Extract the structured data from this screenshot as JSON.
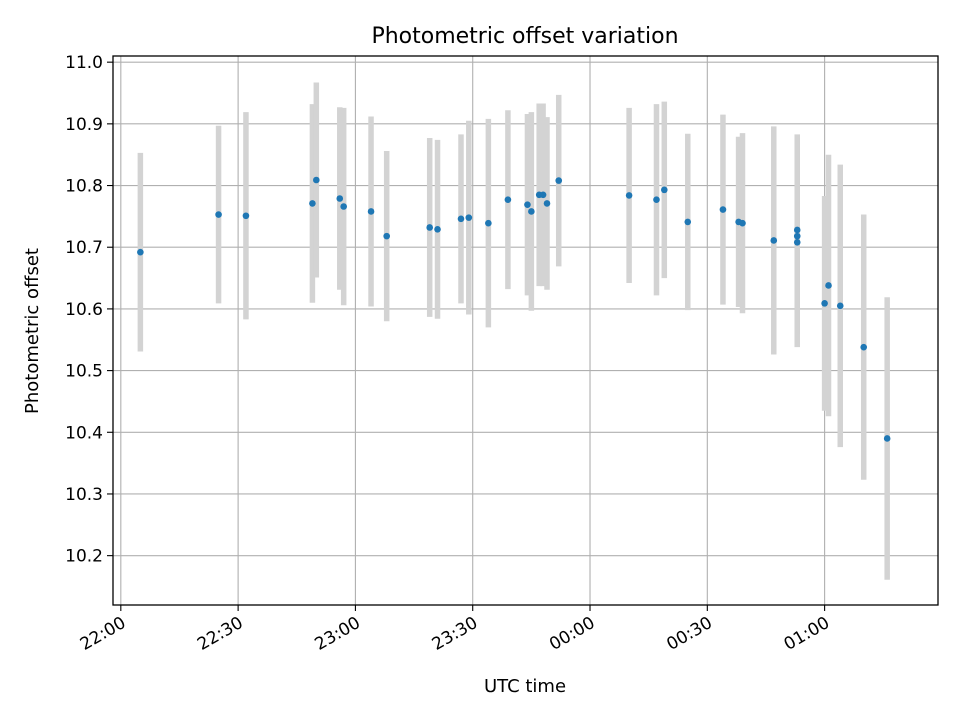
{
  "chart_data": {
    "type": "scatter",
    "title": "Photometric offset variation",
    "xlabel": "UTC time",
    "ylabel": "Photometric offset",
    "grid": true,
    "colors": {
      "points": "#1f77b4",
      "errorbars": "#d3d3d3",
      "grid": "#b0b0b0"
    },
    "xlim": [
      "21:58",
      "01:29"
    ],
    "ylim": [
      10.12,
      11.01
    ],
    "x_tick_labels": [
      "22:00",
      "22:30",
      "23:00",
      "23:30",
      "00:00",
      "00:30",
      "01:00"
    ],
    "x_tick_minutes": [
      0,
      30,
      60,
      90,
      120,
      150,
      180
    ],
    "y_ticks": [
      "10.2",
      "10.3",
      "10.4",
      "10.5",
      "10.6",
      "10.7",
      "10.8",
      "10.9",
      "11.0"
    ],
    "y_tick_values": [
      10.2,
      10.3,
      10.4,
      10.5,
      10.6,
      10.7,
      10.8,
      10.9,
      11.0
    ],
    "points": [
      {
        "x": "22:05",
        "y": 10.692,
        "err": 0.161
      },
      {
        "x": "22:25",
        "y": 10.753,
        "err": 0.144
      },
      {
        "x": "22:32",
        "y": 10.751,
        "err": 0.168
      },
      {
        "x": "22:49",
        "y": 10.771,
        "err": 0.161
      },
      {
        "x": "22:50",
        "y": 10.809,
        "err": 0.158
      },
      {
        "x": "22:56",
        "y": 10.779,
        "err": 0.148
      },
      {
        "x": "22:57",
        "y": 10.766,
        "err": 0.16
      },
      {
        "x": "23:04",
        "y": 10.758,
        "err": 0.154
      },
      {
        "x": "23:08",
        "y": 10.718,
        "err": 0.138
      },
      {
        "x": "23:19",
        "y": 10.732,
        "err": 0.145
      },
      {
        "x": "23:21",
        "y": 10.729,
        "err": 0.145
      },
      {
        "x": "23:27",
        "y": 10.746,
        "err": 0.137
      },
      {
        "x": "23:29",
        "y": 10.748,
        "err": 0.157
      },
      {
        "x": "23:34",
        "y": 10.739,
        "err": 0.169
      },
      {
        "x": "23:39",
        "y": 10.777,
        "err": 0.145
      },
      {
        "x": "23:44",
        "y": 10.769,
        "err": 0.147
      },
      {
        "x": "23:45",
        "y": 10.758,
        "err": 0.161
      },
      {
        "x": "23:47",
        "y": 10.785,
        "err": 0.148
      },
      {
        "x": "23:48",
        "y": 10.785,
        "err": 0.148
      },
      {
        "x": "23:49",
        "y": 10.771,
        "err": 0.14
      },
      {
        "x": "23:52",
        "y": 10.808,
        "err": 0.139
      },
      {
        "x": "00:10",
        "y": 10.784,
        "err": 0.142
      },
      {
        "x": "00:17",
        "y": 10.777,
        "err": 0.155
      },
      {
        "x": "00:19",
        "y": 10.793,
        "err": 0.143
      },
      {
        "x": "00:25",
        "y": 10.741,
        "err": 0.143
      },
      {
        "x": "00:34",
        "y": 10.761,
        "err": 0.154
      },
      {
        "x": "00:38",
        "y": 10.741,
        "err": 0.138
      },
      {
        "x": "00:39",
        "y": 10.739,
        "err": 0.146
      },
      {
        "x": "00:47",
        "y": 10.711,
        "err": 0.185
      },
      {
        "x": "00:53",
        "y": 10.728,
        "err": 0.155
      },
      {
        "x": "00:53",
        "y": 10.718,
        "err": 0.16
      },
      {
        "x": "00:53",
        "y": 10.708,
        "err": 0.17
      },
      {
        "x": "01:00",
        "y": 10.609,
        "err": 0.174
      },
      {
        "x": "01:01",
        "y": 10.638,
        "err": 0.212
      },
      {
        "x": "01:04",
        "y": 10.605,
        "err": 0.229
      },
      {
        "x": "01:10",
        "y": 10.538,
        "err": 0.215
      },
      {
        "x": "01:16",
        "y": 10.39,
        "err": 0.229
      }
    ]
  }
}
